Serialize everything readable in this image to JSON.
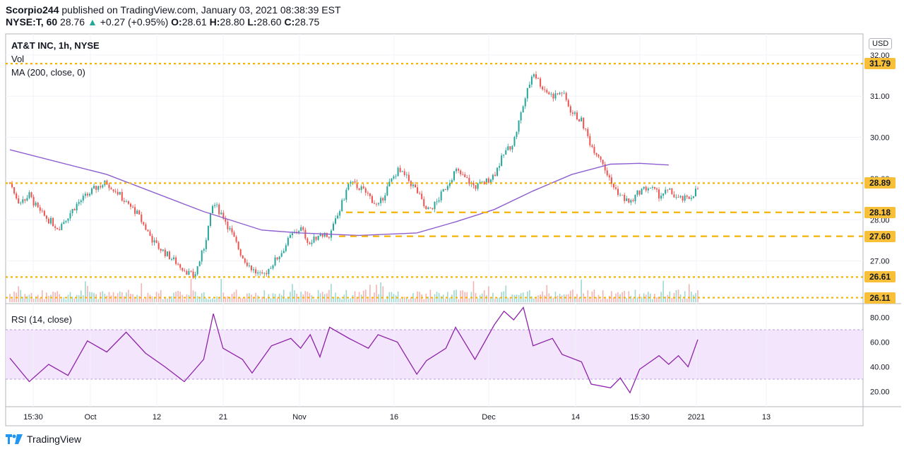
{
  "header": {
    "publisher": "Scorpio244",
    "published_text": "published on TradingView.com, January 03, 2021 08:38:39 EST",
    "symbol_line": "NYSE:T, 60",
    "last": "28.76",
    "change_arrow": "▲",
    "change": "+0.27 (+0.95%)",
    "o_label": "O:",
    "o": "28.61",
    "h_label": "H:",
    "h": "28.80",
    "l_label": "L:",
    "l": "28.60",
    "c_label": "C:",
    "c": "28.75"
  },
  "legend": {
    "title": "AT&T INC, 1h, NYSE",
    "vol": "Vol",
    "ma": "MA (200, close, 0)",
    "rsi": "RSI (14, close)"
  },
  "currency": "USD",
  "price_axis": [
    "32.00",
    "31.00",
    "30.00",
    "29.00",
    "28.00",
    "27.00"
  ],
  "rsi_axis": [
    "80.00",
    "60.00",
    "40.00",
    "20.00"
  ],
  "time_axis": [
    "15:30",
    "Oct",
    "12",
    "21",
    "Nov",
    "16",
    "Dec",
    "14",
    "15:30",
    "2021",
    "13"
  ],
  "level_lines": [
    {
      "label": "31.79",
      "style": "dotted"
    },
    {
      "label": "28.89",
      "style": "dotted"
    },
    {
      "label": "28.18",
      "style": "dashed"
    },
    {
      "label": "27.60",
      "style": "dashed"
    },
    {
      "label": "26.61",
      "style": "dotted"
    },
    {
      "label": "26.11",
      "style": "dotted"
    }
  ],
  "colors": {
    "up": "#26a69a",
    "down": "#ef5350",
    "ma": "#8e5ecf",
    "rsi": "#8e24aa",
    "rsi_band": "#f3e5fb",
    "level": "#f5b400",
    "grid": "#f0f3fa",
    "brand": "#2196f3"
  },
  "footer": {
    "brand": "TradingView",
    "logo_icon": "tradingview-logo-icon"
  },
  "chart_data": [
    {
      "type": "candlestick",
      "title": "AT&T INC, 1h, NYSE",
      "ylim": [
        26.0,
        32.1
      ],
      "close_path": [
        [
          0,
          28.9
        ],
        [
          2,
          28.4
        ],
        [
          4,
          28.6
        ],
        [
          6,
          28.2
        ],
        [
          8,
          28.0
        ],
        [
          10,
          27.8
        ],
        [
          12,
          28.1
        ],
        [
          14,
          28.4
        ],
        [
          16,
          28.6
        ],
        [
          18,
          28.8
        ],
        [
          20,
          28.9
        ],
        [
          22,
          28.7
        ],
        [
          24,
          28.4
        ],
        [
          26,
          28.2
        ],
        [
          28,
          27.8
        ],
        [
          30,
          27.4
        ],
        [
          32,
          27.2
        ],
        [
          34,
          27.0
        ],
        [
          36,
          26.8
        ],
        [
          38,
          26.6
        ],
        [
          40,
          27.3
        ],
        [
          42,
          28.4
        ],
        [
          44,
          28.1
        ],
        [
          46,
          27.6
        ],
        [
          48,
          27.1
        ],
        [
          50,
          26.8
        ],
        [
          52,
          26.6
        ],
        [
          54,
          26.9
        ],
        [
          56,
          27.2
        ],
        [
          58,
          27.6
        ],
        [
          60,
          27.8
        ],
        [
          62,
          27.4
        ],
        [
          64,
          27.7
        ],
        [
          66,
          27.6
        ],
        [
          68,
          28.2
        ],
        [
          70,
          28.9
        ],
        [
          72,
          28.8
        ],
        [
          74,
          28.6
        ],
        [
          76,
          28.3
        ],
        [
          78,
          28.8
        ],
        [
          80,
          29.2
        ],
        [
          82,
          29.0
        ],
        [
          84,
          28.7
        ],
        [
          86,
          28.2
        ],
        [
          88,
          28.4
        ],
        [
          90,
          28.8
        ],
        [
          92,
          29.2
        ],
        [
          94,
          29.0
        ],
        [
          96,
          28.8
        ],
        [
          98,
          28.9
        ],
        [
          100,
          29.1
        ],
        [
          102,
          29.6
        ],
        [
          104,
          29.9
        ],
        [
          106,
          30.8
        ],
        [
          108,
          31.6
        ],
        [
          110,
          31.2
        ],
        [
          112,
          31.0
        ],
        [
          114,
          31.1
        ],
        [
          116,
          30.6
        ],
        [
          118,
          30.4
        ],
        [
          120,
          29.8
        ],
        [
          122,
          29.5
        ],
        [
          124,
          28.9
        ],
        [
          126,
          28.6
        ],
        [
          128,
          28.4
        ],
        [
          130,
          28.7
        ],
        [
          132,
          28.8
        ],
        [
          134,
          28.6
        ],
        [
          136,
          28.7
        ],
        [
          138,
          28.5
        ],
        [
          140,
          28.5
        ],
        [
          142,
          28.76
        ]
      ]
    },
    {
      "type": "line",
      "series": [
        {
          "name": "MA (200, close, 0)",
          "values": [
            [
              0,
              29.7
            ],
            [
              20,
              29.1
            ],
            [
              40,
              28.2
            ],
            [
              52,
              27.75
            ],
            [
              60,
              27.68
            ],
            [
              72,
              27.62
            ],
            [
              84,
              27.68
            ],
            [
              92,
              27.95
            ],
            [
              100,
              28.25
            ],
            [
              108,
              28.7
            ],
            [
              116,
              29.1
            ],
            [
              124,
              29.35
            ],
            [
              130,
              29.37
            ],
            [
              136,
              29.33
            ]
          ]
        }
      ],
      "ylim": [
        26.0,
        32.1
      ]
    },
    {
      "type": "line",
      "series": [
        {
          "name": "RSI (14, close)",
          "values": [
            [
              0,
              47
            ],
            [
              4,
              28
            ],
            [
              8,
              42
            ],
            [
              12,
              33
            ],
            [
              16,
              61
            ],
            [
              20,
              52
            ],
            [
              24,
              68
            ],
            [
              28,
              51
            ],
            [
              32,
              40
            ],
            [
              36,
              28
            ],
            [
              40,
              46
            ],
            [
              42,
              83
            ],
            [
              44,
              55
            ],
            [
              48,
              46
            ],
            [
              50,
              35
            ],
            [
              54,
              57
            ],
            [
              58,
              63
            ],
            [
              60,
              55
            ],
            [
              62,
              66
            ],
            [
              64,
              48
            ],
            [
              66,
              72
            ],
            [
              70,
              63
            ],
            [
              74,
              55
            ],
            [
              76,
              66
            ],
            [
              80,
              60
            ],
            [
              84,
              34
            ],
            [
              86,
              45
            ],
            [
              90,
              55
            ],
            [
              92,
              72
            ],
            [
              96,
              46
            ],
            [
              100,
              74
            ],
            [
              102,
              85
            ],
            [
              104,
              78
            ],
            [
              106,
              88
            ],
            [
              108,
              57
            ],
            [
              112,
              63
            ],
            [
              114,
              50
            ],
            [
              118,
              44
            ],
            [
              120,
              26
            ],
            [
              124,
              23
            ],
            [
              126,
              31
            ],
            [
              128,
              19
            ],
            [
              130,
              38
            ],
            [
              134,
              49
            ],
            [
              136,
              42
            ],
            [
              138,
              49
            ],
            [
              140,
              40
            ],
            [
              142,
              62
            ]
          ]
        }
      ],
      "ylim": [
        10,
        90
      ],
      "bands": [
        30,
        70
      ]
    }
  ]
}
